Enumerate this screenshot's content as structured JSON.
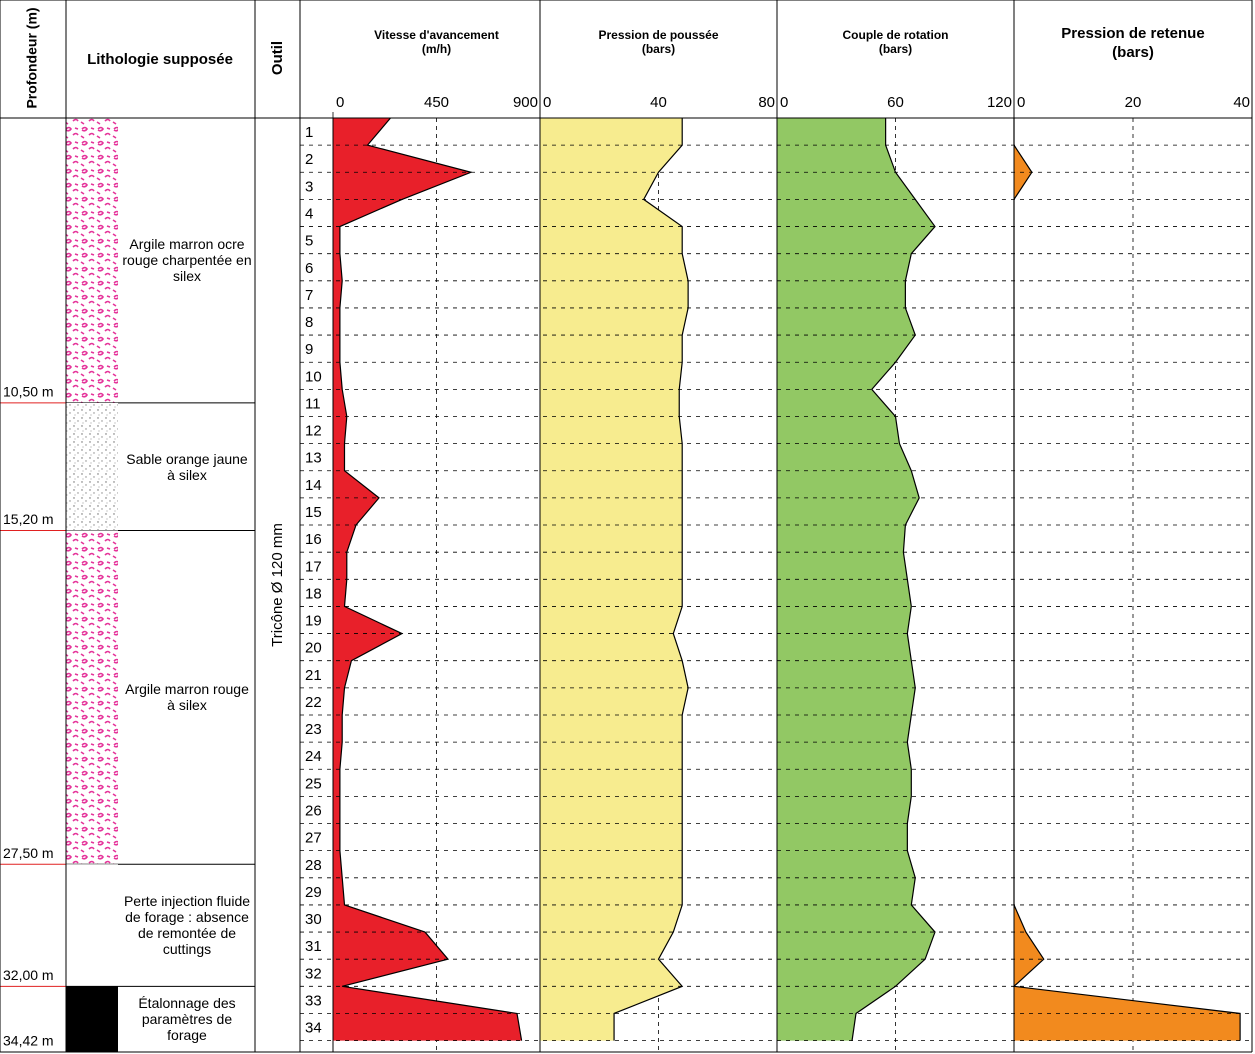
{
  "headers": {
    "depth": "Profondeur (m)",
    "lithology": "Lithologie supposée",
    "tool": "Outil"
  },
  "tool_label": "Tricône Ø 120 mm",
  "depth_top": 0,
  "depth_ticks": [
    1,
    2,
    3,
    4,
    5,
    6,
    7,
    8,
    9,
    10,
    11,
    12,
    13,
    14,
    15,
    16,
    17,
    18,
    19,
    20,
    21,
    22,
    23,
    24,
    25,
    26,
    27,
    28,
    29,
    30,
    31,
    32,
    33,
    34
  ],
  "lithology": [
    {
      "pattern": "clay-flint",
      "description": "Argile marron ocre rouge charpentée en silex",
      "bottom": {
        "value": 10.5,
        "label": "10,50 m"
      }
    },
    {
      "pattern": "sand",
      "description": "Sable orange jaune à silex",
      "bottom": {
        "value": 15.2,
        "label": "15,20 m"
      }
    },
    {
      "pattern": "clay-flint",
      "description": "Argile marron rouge à silex",
      "bottom": {
        "value": 27.5,
        "label": "27,50 m"
      }
    },
    {
      "pattern": "none",
      "description": "Perte injection fluide de forage : absence de remontée de cuttings",
      "bottom": {
        "value": 32.0,
        "label": "32,00 m"
      }
    },
    {
      "pattern": "black",
      "description": "Étalonnage des paramètres de forage",
      "bottom": {
        "value": 34.42,
        "label": "34,42 m"
      }
    }
  ],
  "chart_data": [
    {
      "type": "area",
      "title": "Vitesse d'avancement",
      "subtitle": "(m/h)",
      "color": "#e8202a",
      "xlim": [
        0,
        900
      ],
      "xticks": [
        0,
        450,
        900
      ],
      "depths": [
        0,
        1,
        2,
        3,
        4,
        5,
        6,
        7,
        8,
        9,
        10,
        11,
        12,
        13,
        14,
        15,
        16,
        17,
        18,
        19,
        20,
        21,
        22,
        23,
        24,
        25,
        26,
        27,
        28,
        29,
        30,
        31,
        32,
        33,
        34
      ],
      "values": [
        250,
        150,
        600,
        300,
        30,
        30,
        40,
        30,
        30,
        30,
        40,
        60,
        50,
        50,
        200,
        100,
        60,
        60,
        50,
        300,
        80,
        50,
        40,
        40,
        30,
        30,
        30,
        30,
        40,
        50,
        400,
        500,
        40,
        800,
        820
      ]
    },
    {
      "type": "area",
      "title": "Pression de poussée",
      "subtitle": "(bars)",
      "color": "#f7ec8f",
      "xlim": [
        0,
        80
      ],
      "xticks": [
        0,
        40,
        80
      ],
      "depths": [
        0,
        1,
        2,
        3,
        4,
        5,
        6,
        7,
        8,
        9,
        10,
        11,
        12,
        13,
        14,
        15,
        16,
        17,
        18,
        19,
        20,
        21,
        22,
        23,
        24,
        25,
        26,
        27,
        28,
        29,
        30,
        31,
        32,
        33,
        34
      ],
      "values": [
        48,
        48,
        40,
        35,
        48,
        48,
        50,
        50,
        48,
        48,
        47,
        47,
        48,
        48,
        48,
        48,
        48,
        48,
        48,
        45,
        48,
        50,
        48,
        48,
        48,
        48,
        48,
        48,
        48,
        48,
        45,
        40,
        48,
        25,
        25
      ]
    },
    {
      "type": "area",
      "title": "Couple de rotation",
      "subtitle": "(bars)",
      "color": "#92c864",
      "xlim": [
        0,
        120
      ],
      "xticks": [
        0,
        60,
        120
      ],
      "depths": [
        0,
        1,
        2,
        3,
        4,
        5,
        6,
        7,
        8,
        9,
        10,
        11,
        12,
        13,
        14,
        15,
        16,
        17,
        18,
        19,
        20,
        21,
        22,
        23,
        24,
        25,
        26,
        27,
        28,
        29,
        30,
        31,
        32,
        33,
        34
      ],
      "values": [
        55,
        55,
        60,
        70,
        80,
        68,
        65,
        65,
        70,
        60,
        48,
        60,
        62,
        68,
        72,
        65,
        64,
        66,
        68,
        66,
        68,
        70,
        68,
        66,
        68,
        68,
        66,
        66,
        70,
        68,
        80,
        75,
        60,
        40,
        38
      ]
    },
    {
      "type": "area",
      "title": "Pression de retenue",
      "subtitle": "(bars)",
      "color": "#f28a1e",
      "xlim": [
        0,
        40
      ],
      "xticks": [
        0,
        20,
        40
      ],
      "depths": [
        0,
        1,
        2,
        3,
        4,
        5,
        6,
        7,
        8,
        9,
        10,
        11,
        12,
        13,
        14,
        15,
        16,
        17,
        18,
        19,
        20,
        21,
        22,
        23,
        24,
        25,
        26,
        27,
        28,
        29,
        30,
        31,
        32,
        33,
        34
      ],
      "values": [
        0,
        0,
        3,
        0,
        0,
        0,
        0,
        0,
        0,
        0,
        0,
        0,
        0,
        0,
        0,
        0,
        0,
        0,
        0,
        0,
        0,
        0,
        0,
        0,
        0,
        0,
        0,
        0,
        0,
        0,
        2,
        5,
        0,
        38,
        38
      ]
    }
  ]
}
